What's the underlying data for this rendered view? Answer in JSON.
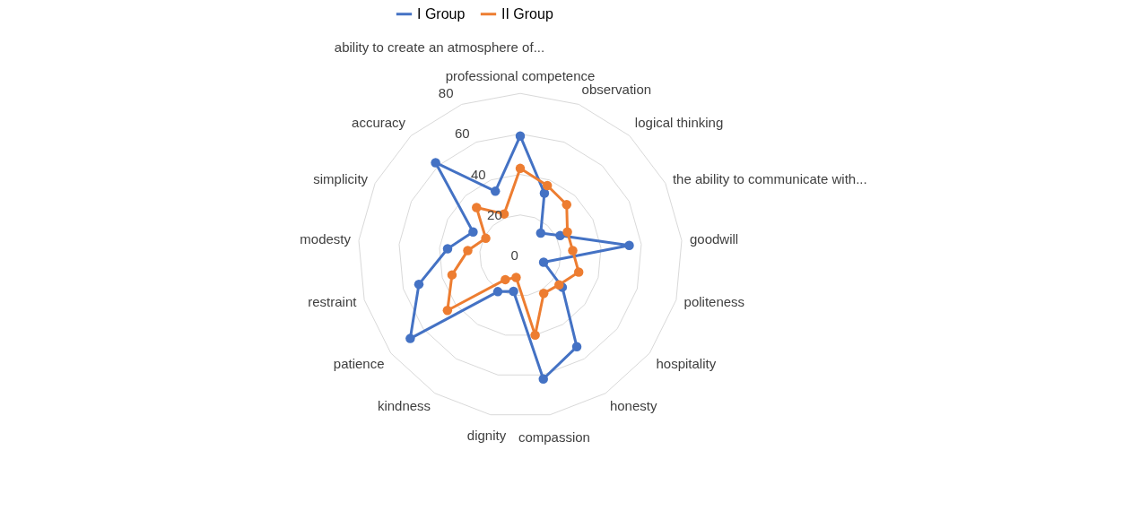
{
  "chart_data": {
    "type": "radar",
    "categories": [
      "professional competence",
      "observation",
      "logical thinking",
      "the ability to communicate with...",
      "goodwill",
      "politeness",
      "hospitality",
      "honesty",
      "compassion",
      "dignity",
      "kindness",
      "patience",
      "restraint",
      "modesty",
      "simplicity",
      "accuracy",
      "ability to create an atmosphere of..."
    ],
    "series": [
      {
        "name": "I Group",
        "color": "#4472c4",
        "values": [
          59,
          33,
          15,
          22,
          54,
          12,
          26,
          53,
          62,
          18,
          21,
          68,
          52,
          36,
          26,
          62,
          34
        ]
      },
      {
        "name": "II Group",
        "color": "#ed7d31",
        "values": [
          43,
          37,
          34,
          26,
          26,
          30,
          24,
          22,
          40,
          11,
          14,
          45,
          35,
          26,
          19,
          32,
          22
        ]
      }
    ],
    "ylim": [
      0,
      80
    ],
    "yticks": [
      0,
      20,
      40,
      60,
      80
    ],
    "grid": true,
    "legend": "top",
    "marker": "circle"
  }
}
